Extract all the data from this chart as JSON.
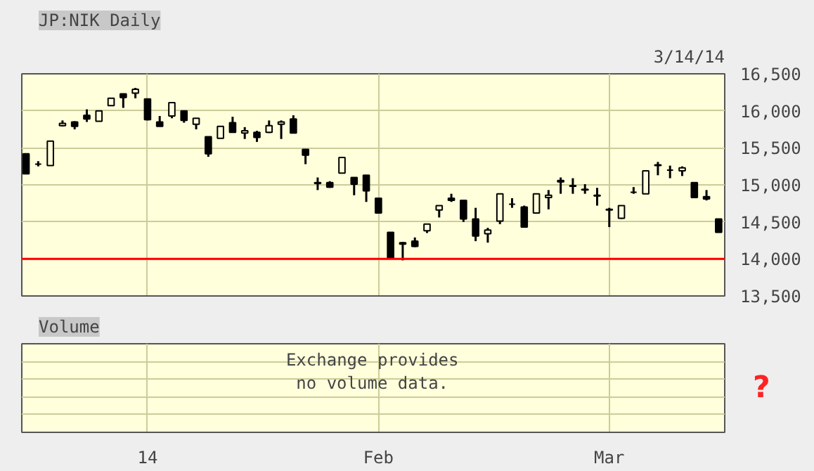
{
  "chart_data": [
    {
      "type": "candlestick",
      "title": "JP:NIK Daily",
      "subtitle": "3/14/14",
      "color": "#000000",
      "categories": [
        null,
        null,
        null,
        null,
        null,
        null,
        null,
        null,
        null,
        null,
        null,
        null,
        null,
        null,
        null,
        null,
        null,
        null,
        null,
        null,
        null,
        null,
        null,
        null,
        null,
        null,
        null,
        null,
        null,
        null,
        null,
        null,
        null,
        null,
        null,
        null,
        null,
        null,
        null,
        null,
        null,
        null,
        null,
        null,
        null,
        null,
        null,
        null,
        null,
        null,
        null,
        null,
        null,
        null,
        null,
        null,
        null,
        null
      ],
      "ohlc": [
        [
          15420,
          15420,
          15150,
          15150
        ],
        [
          15280,
          15320,
          15250,
          15280
        ],
        [
          15260,
          15590,
          15260,
          15590
        ],
        [
          15800,
          15870,
          15790,
          15830
        ],
        [
          15850,
          15860,
          15750,
          15790
        ],
        [
          15940,
          16020,
          15850,
          15890
        ],
        [
          15860,
          16000,
          15860,
          16000
        ],
        [
          16070,
          16170,
          16070,
          16170
        ],
        [
          16230,
          16230,
          16040,
          16180
        ],
        [
          16240,
          16310,
          16170,
          16290
        ],
        [
          16160,
          16160,
          15870,
          15880
        ],
        [
          15850,
          15930,
          15790,
          15790
        ],
        [
          15930,
          16110,
          15900,
          16110
        ],
        [
          16000,
          16000,
          15840,
          15870
        ],
        [
          15820,
          15900,
          15750,
          15900
        ],
        [
          15650,
          15650,
          15380,
          15420
        ],
        [
          15630,
          15790,
          15630,
          15790
        ],
        [
          15840,
          15920,
          15710,
          15710
        ],
        [
          15700,
          15780,
          15620,
          15730
        ],
        [
          15710,
          15730,
          15580,
          15640
        ],
        [
          15710,
          15870,
          15700,
          15800
        ],
        [
          15820,
          15870,
          15620,
          15850
        ],
        [
          15890,
          15940,
          15700,
          15700
        ],
        [
          15480,
          15480,
          15280,
          15400
        ],
        [
          15030,
          15100,
          14930,
          15020
        ],
        [
          15030,
          15050,
          14960,
          14970
        ],
        [
          15160,
          15370,
          15160,
          15370
        ],
        [
          15100,
          15100,
          14860,
          15010
        ],
        [
          15130,
          15130,
          14770,
          14920
        ],
        [
          14820,
          14820,
          14620,
          14620
        ],
        [
          14360,
          14360,
          14010,
          14010
        ],
        [
          14200,
          14230,
          13980,
          14220
        ],
        [
          14240,
          14290,
          14160,
          14170
        ],
        [
          14380,
          14470,
          14350,
          14470
        ],
        [
          14660,
          14720,
          14560,
          14720
        ],
        [
          14820,
          14880,
          14770,
          14790
        ],
        [
          14790,
          14790,
          14500,
          14540
        ],
        [
          14540,
          14690,
          14240,
          14310
        ],
        [
          14340,
          14420,
          14220,
          14390
        ],
        [
          14510,
          14880,
          14470,
          14880
        ],
        [
          14740,
          14820,
          14690,
          14740
        ],
        [
          14700,
          14720,
          14430,
          14430
        ],
        [
          14620,
          14880,
          14620,
          14880
        ],
        [
          14830,
          14930,
          14670,
          14860
        ],
        [
          15040,
          15100,
          14880,
          15060
        ],
        [
          14990,
          15090,
          14880,
          14980
        ],
        [
          14940,
          15010,
          14880,
          14930
        ],
        [
          14860,
          14960,
          14720,
          14850
        ],
        [
          14670,
          14690,
          14430,
          14660
        ],
        [
          14550,
          14720,
          14540,
          14720
        ],
        [
          14900,
          14970,
          14880,
          14900
        ],
        [
          14880,
          15190,
          14880,
          15190
        ],
        [
          15260,
          15310,
          15130,
          15270
        ],
        [
          15200,
          15260,
          15090,
          15200
        ],
        [
          15190,
          15250,
          15120,
          15230
        ],
        [
          15030,
          15030,
          14830,
          14830
        ],
        [
          14840,
          14930,
          14790,
          14810
        ],
        [
          14540,
          14540,
          14360,
          14360
        ]
      ],
      "ylim": [
        13500,
        16500
      ],
      "yticks": [
        {
          "value": 13500,
          "label": "13,500"
        },
        {
          "value": 14000,
          "label": "14,000"
        },
        {
          "value": 14500,
          "label": "14,500"
        },
        {
          "value": 15000,
          "label": "15,000"
        },
        {
          "value": 15500,
          "label": "15,500"
        },
        {
          "value": 16000,
          "label": "16,000"
        },
        {
          "value": 16500,
          "label": "16,500"
        }
      ],
      "ref_lines": [
        {
          "axis": "y",
          "value": 14000,
          "label": null,
          "color": "#ff0000"
        }
      ],
      "grid": true,
      "tick_labels": "y"
    },
    {
      "type": "other",
      "title": "Volume",
      "categories": [
        null,
        null,
        null,
        null,
        null,
        null,
        null,
        null,
        null,
        null,
        "14",
        null,
        null,
        null,
        null,
        null,
        null,
        null,
        null,
        null,
        null,
        null,
        null,
        null,
        null,
        null,
        null,
        null,
        null,
        "Feb",
        null,
        null,
        null,
        null,
        null,
        null,
        null,
        null,
        null,
        null,
        null,
        null,
        null,
        null,
        null,
        null,
        null,
        null,
        "Mar",
        null,
        null,
        null,
        null,
        null,
        null,
        null,
        null,
        null
      ],
      "annotations": [
        "Exchange provides\nno volume data.",
        "?"
      ]
    }
  ]
}
